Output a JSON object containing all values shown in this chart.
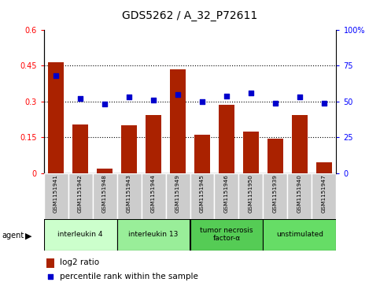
{
  "title": "GDS5262 / A_32_P72611",
  "samples": [
    "GSM1151941",
    "GSM1151942",
    "GSM1151948",
    "GSM1151943",
    "GSM1151944",
    "GSM1151949",
    "GSM1151945",
    "GSM1151946",
    "GSM1151950",
    "GSM1151939",
    "GSM1151940",
    "GSM1151947"
  ],
  "log2_ratio": [
    0.465,
    0.205,
    0.018,
    0.2,
    0.245,
    0.435,
    0.16,
    0.285,
    0.175,
    0.145,
    0.245,
    0.045
  ],
  "percentile_rank": [
    68,
    52,
    48,
    53,
    51,
    55,
    50,
    54,
    56,
    49,
    53,
    49
  ],
  "bar_color": "#aa2200",
  "dot_color": "#0000cc",
  "ylim_left": [
    0,
    0.6
  ],
  "ylim_right": [
    0,
    100
  ],
  "yticks_left": [
    0,
    0.15,
    0.3,
    0.45,
    0.6
  ],
  "yticks_right": [
    0,
    25,
    50,
    75,
    100
  ],
  "ytick_labels_left": [
    "0",
    "0.15",
    "0.3",
    "0.45",
    "0.6"
  ],
  "ytick_labels_right": [
    "0",
    "25",
    "50",
    "75",
    "100%"
  ],
  "hlines": [
    0.15,
    0.3,
    0.45
  ],
  "groups": [
    {
      "label": "interleukin 4",
      "indices": [
        0,
        1,
        2
      ],
      "color": "#ccffcc"
    },
    {
      "label": "interleukin 13",
      "indices": [
        3,
        4,
        5
      ],
      "color": "#99ee99"
    },
    {
      "label": "tumor necrosis\nfactor-α",
      "indices": [
        6,
        7,
        8
      ],
      "color": "#55cc55"
    },
    {
      "label": "unstimulated",
      "indices": [
        9,
        10,
        11
      ],
      "color": "#66dd66"
    }
  ],
  "agent_label": "agent",
  "legend_bar_label": "log2 ratio",
  "legend_dot_label": "percentile rank within the sample",
  "bg_color": "#ffffff",
  "plot_bg_color": "#ffffff",
  "tick_area_bg": "#cccccc",
  "title_fontsize": 10,
  "tick_label_fontsize": 7,
  "axis_label_fontsize": 8,
  "bar_width": 0.65
}
